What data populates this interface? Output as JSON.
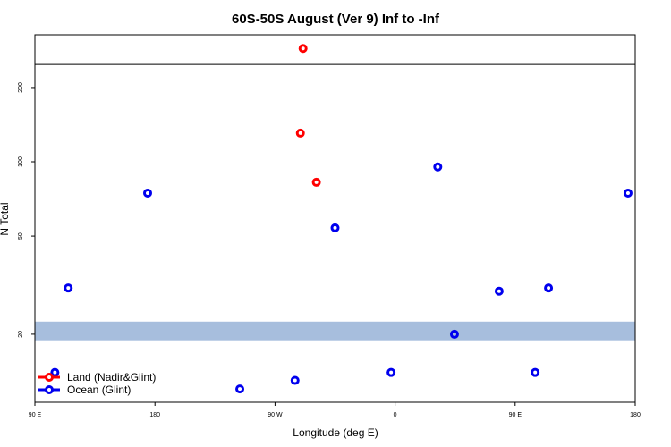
{
  "chart_data": {
    "type": "scatter",
    "title": "60S-50S August (Ver 9)   Inf to -Inf",
    "x_label": "Longitude (deg E)",
    "y_label": "N Total",
    "log_y": true,
    "xlim": [
      90,
      540
    ],
    "ylim": [
      10.6,
      327
    ],
    "xticks": [
      {
        "value": 90,
        "label": "90 E"
      },
      180,
      {
        "value": 270,
        "label": "90 W"
      },
      {
        "value": 360,
        "label": "0"
      },
      {
        "value": 450,
        "label": "90 E"
      },
      {
        "value": 540,
        "label": "180"
      }
    ],
    "yticks": [
      20,
      50,
      100,
      200
    ],
    "hline": 248,
    "band": [
      18.9,
      22.5
    ],
    "band_color": "#a7bedd",
    "legend": "bottom-left",
    "series": [
      {
        "name": "Land (Nadir&Glint)",
        "color": "#ff0000",
        "x": [
          291,
          289,
          301
        ],
        "values": [
          288,
          130.7,
          82.6
        ]
      },
      {
        "name": "Ocean (Glint)",
        "color": "#0000ee",
        "x": [
          105,
          115,
          174.5,
          243.6,
          285,
          315,
          357,
          392,
          404.5,
          438,
          465,
          475,
          534.6
        ],
        "values": [
          14.0,
          30.8,
          74.7,
          12.0,
          13.0,
          54.0,
          14.0,
          95.3,
          20,
          29.9,
          14.0,
          30.8,
          74.7
        ]
      }
    ]
  }
}
